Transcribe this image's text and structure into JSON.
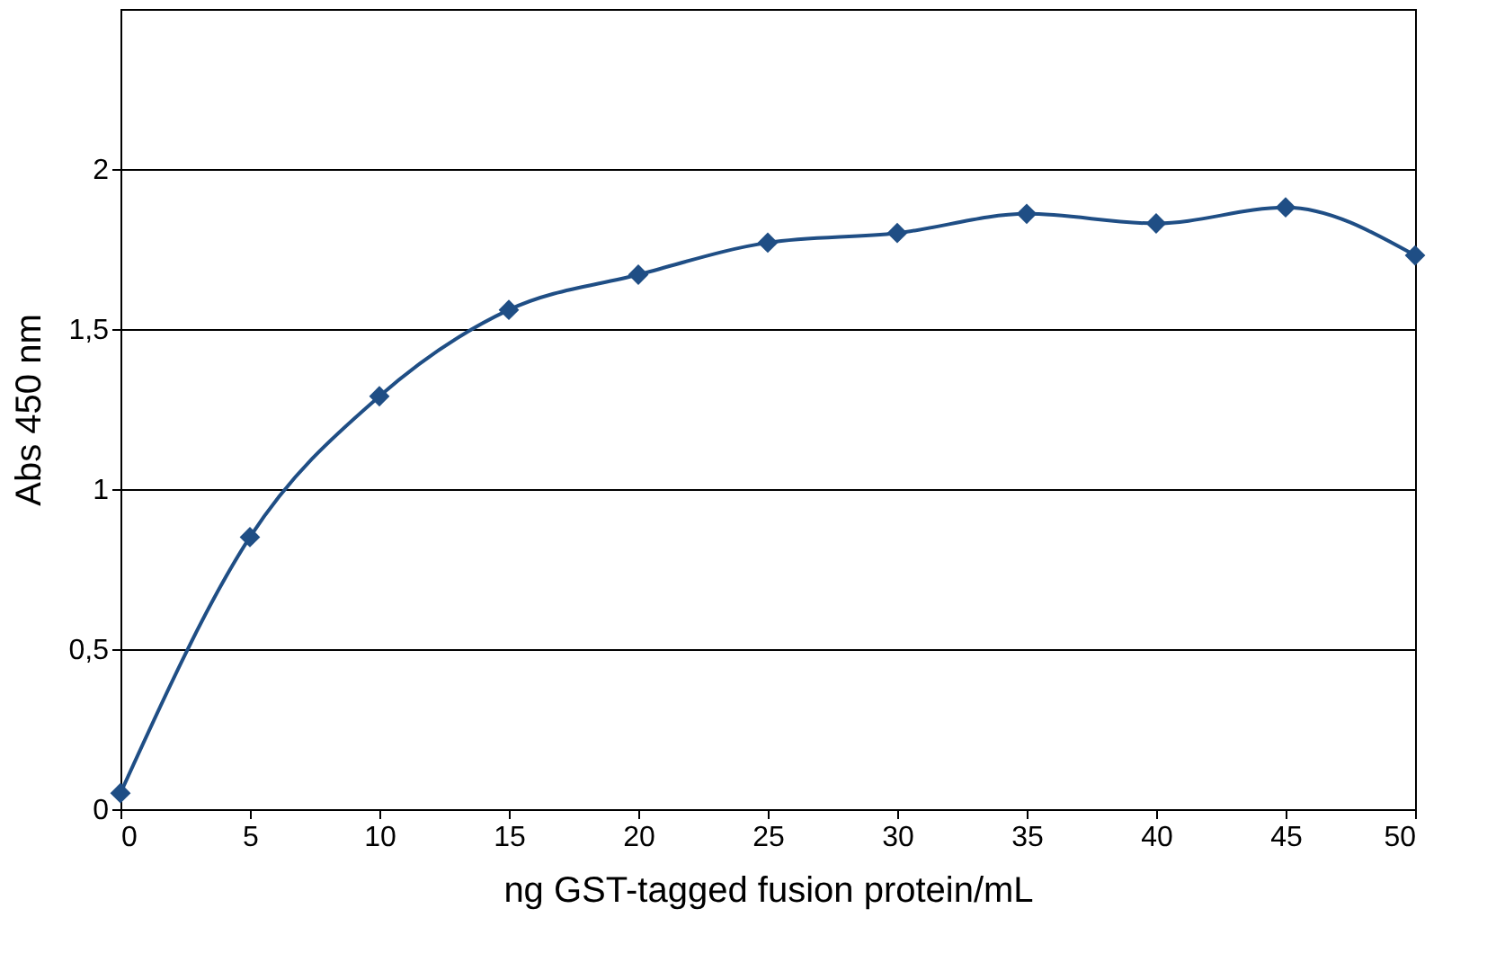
{
  "chart_data": {
    "type": "line",
    "xlabel": "ng GST-tagged fusion protein/mL",
    "ylabel": "Abs 450 nm",
    "x": [
      0,
      5,
      10,
      15,
      20,
      25,
      30,
      35,
      40,
      45,
      50
    ],
    "series": [
      {
        "color": "#1f4e85",
        "values": [
          0.05,
          0.85,
          1.29,
          1.56,
          1.67,
          1.77,
          1.8,
          1.86,
          1.83,
          1.88,
          1.73
        ]
      }
    ],
    "xlim": [
      0,
      50
    ],
    "xticks": [
      0,
      5,
      10,
      15,
      20,
      25,
      30,
      35,
      40,
      45,
      50
    ],
    "ylim": [
      0,
      2.5
    ],
    "yticks": [
      0,
      {
        "value": 0.5,
        "label": "0,5"
      },
      1,
      {
        "value": 1.5,
        "label": "1,5"
      },
      2
    ],
    "grid": "y",
    "marker": "diamond",
    "line_style": "solid"
  }
}
